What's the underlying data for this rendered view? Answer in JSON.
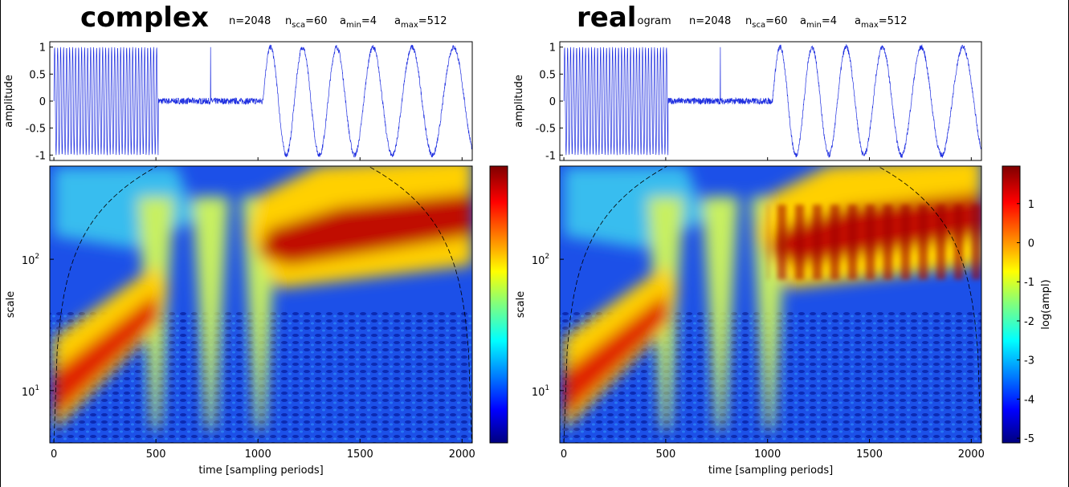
{
  "panels": [
    {
      "title": "complex",
      "params": [
        "n=2048",
        [
          "n",
          "sca",
          "=60"
        ],
        [
          "a",
          "min",
          "=4"
        ],
        [
          "a",
          "max",
          "=512"
        ]
      ],
      "signal_ylabel": "amplitude",
      "scale_ylabel": "scale",
      "xlabel": "time [sampling periods]",
      "xlim": [
        -20,
        2050
      ],
      "xticks": [
        0,
        500,
        1000,
        1500,
        2000
      ],
      "signal_ylim": [
        -1.1,
        1.1
      ],
      "signal_yticks": [
        -1,
        -0.5,
        0,
        0.5,
        1
      ],
      "scale_ylim": [
        4,
        512
      ],
      "log_scale": true,
      "scale_yticks": [
        {
          "value": 10,
          "label": "10",
          "exponent": "1"
        },
        {
          "value": 100,
          "label": "10",
          "exponent": "2"
        }
      ]
    },
    {
      "title": "real",
      "subtitle": "scalogram",
      "params": [
        "n=2048",
        [
          "n",
          "sca",
          "=60"
        ],
        [
          "a",
          "min",
          "=4"
        ],
        [
          "a",
          "max",
          "=512"
        ]
      ],
      "signal_ylabel": "amplitude",
      "scale_ylabel": "scale",
      "xlabel": "time [sampling periods]",
      "xlim": [
        -20,
        2050
      ],
      "xticks": [
        0,
        500,
        1000,
        1500,
        2000
      ],
      "signal_ylim": [
        -1.1,
        1.1
      ],
      "signal_yticks": [
        -1,
        -0.5,
        0,
        0.5,
        1
      ],
      "scale_ylim": [
        4,
        512
      ],
      "log_scale": true,
      "scale_yticks": [
        {
          "value": 10,
          "label": "10",
          "exponent": "1"
        },
        {
          "value": 100,
          "label": "10",
          "exponent": "2"
        }
      ],
      "colorbar_label": "log(ampl)",
      "clim": [
        -5.12,
        1.96
      ],
      "cticks": [
        1,
        0,
        -1,
        -2,
        -3,
        -4,
        -5
      ]
    }
  ]
}
